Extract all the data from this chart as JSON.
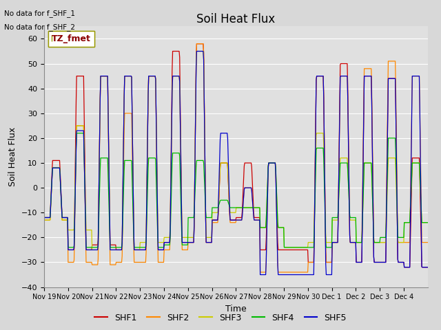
{
  "title": "Soil Heat Flux",
  "ylabel": "Soil Heat Flux",
  "xlabel": "Time",
  "ylim": [
    -40,
    65
  ],
  "yticks": [
    -40,
    -30,
    -20,
    -10,
    0,
    10,
    20,
    30,
    40,
    50,
    60
  ],
  "annotation1": "No data for f_SHF_1",
  "annotation2": "No data for f_SHF_2",
  "legend_label": "TZ_fmet",
  "series_labels": [
    "SHF1",
    "SHF2",
    "SHF3",
    "SHF4",
    "SHF5"
  ],
  "series_colors": [
    "#cc0000",
    "#ff8800",
    "#cccc00",
    "#00bb00",
    "#0000cc"
  ],
  "bg_color": "#d8d8d8",
  "plot_bg_color": "#e0e0e0",
  "xtick_labels": [
    "Nov 19",
    "Nov 20",
    "Nov 21",
    "Nov 22",
    "Nov 23",
    "Nov 24",
    "Nov 25",
    "Nov 26",
    "Nov 27",
    "Nov 28",
    "Nov 29",
    "Nov 30",
    "Dec 1",
    "Dec 2",
    "Dec 3",
    "Dec 4"
  ],
  "title_fontsize": 12,
  "axis_fontsize": 9,
  "tick_fontsize": 8,
  "figwidth": 6.4,
  "figheight": 4.8,
  "dpi": 100
}
